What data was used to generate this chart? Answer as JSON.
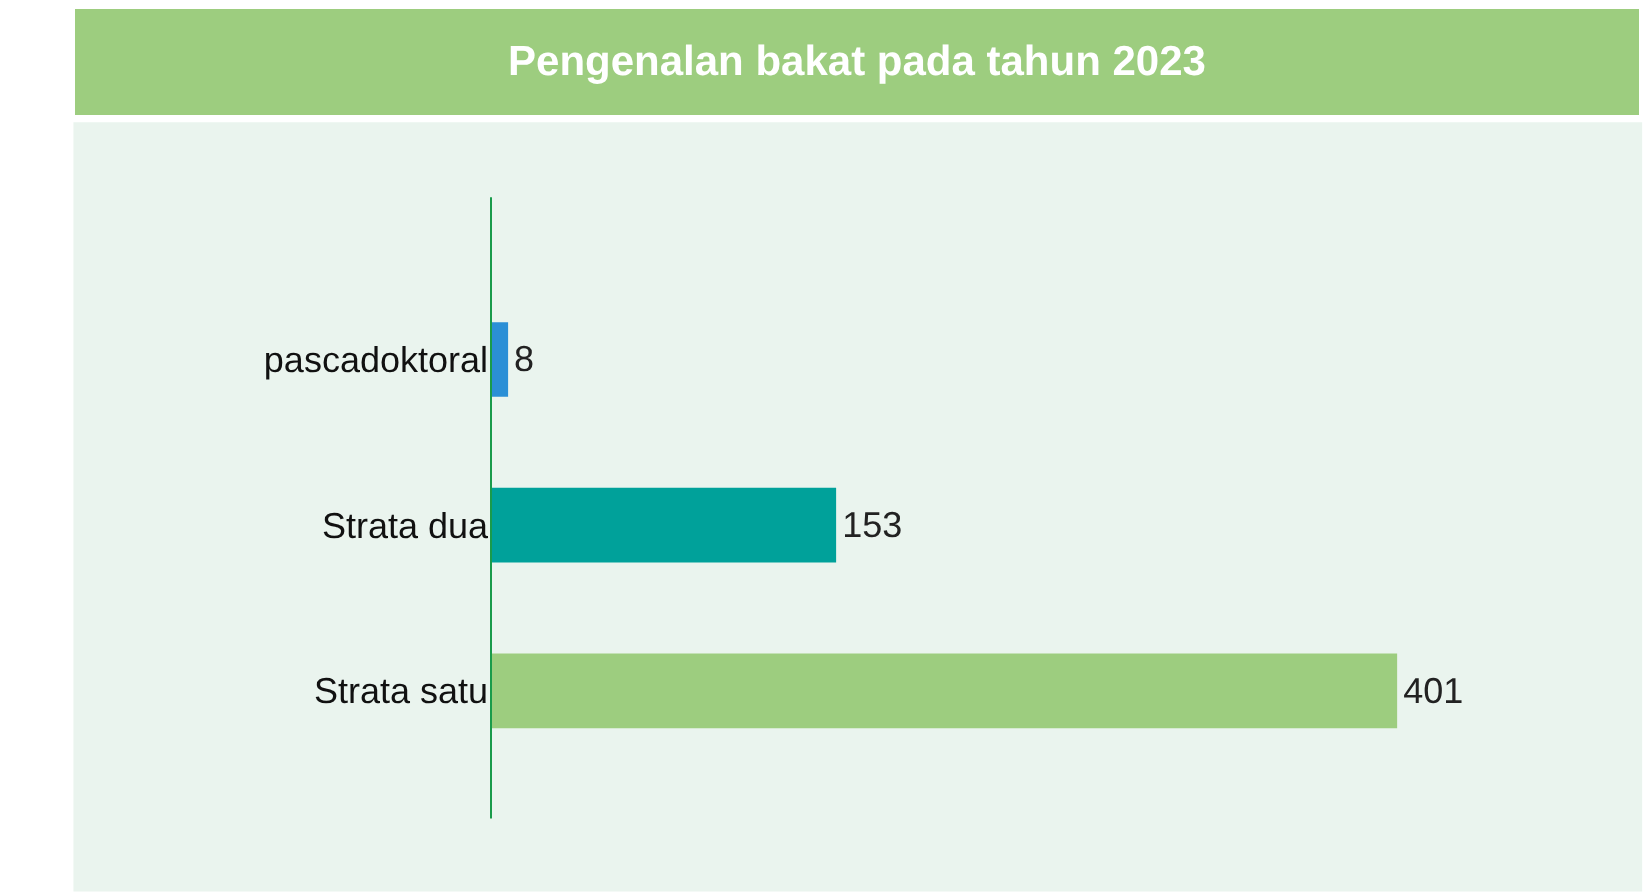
{
  "chart_data": {
    "type": "bar",
    "orientation": "horizontal",
    "title": "Pengenalan bakat pada tahun 2023",
    "categories": [
      "pascadoktoral",
      "Strata dua",
      "Strata satu"
    ],
    "values": [
      8,
      153,
      401
    ],
    "colors": [
      "#2b8fd6",
      "#00a19a",
      "#9dcd7f"
    ],
    "data_labels": true,
    "legend": false,
    "grid": false,
    "tick_labels": "y"
  }
}
